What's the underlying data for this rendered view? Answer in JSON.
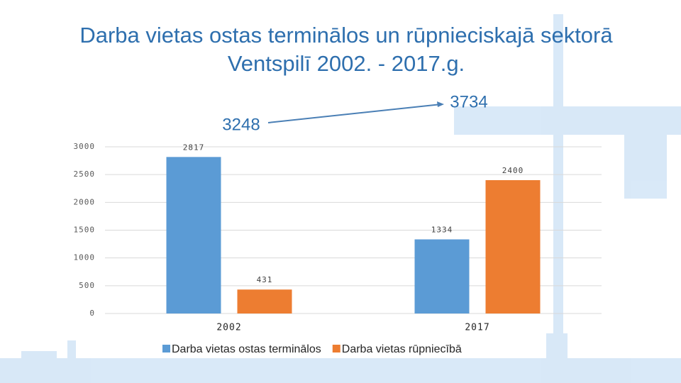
{
  "chart_data": {
    "type": "bar",
    "title": "Darba vietas ostas terminālos un rūpnieciskajā sektorā Ventspilī 2002. - 2017.g.",
    "annotations": [
      "3248",
      "3734"
    ],
    "categories": [
      "2002",
      "2017"
    ],
    "series": [
      {
        "name": "Darba vietas ostas terminālos",
        "color": "#5b9bd5",
        "values": [
          2817,
          1334
        ]
      },
      {
        "name": "Darba vietas rūpniecībā",
        "color": "#ed7d31",
        "values": [
          431,
          2400
        ]
      }
    ],
    "ylim": [
      0,
      3000
    ],
    "yticks": [
      0,
      500,
      1000,
      1500,
      2000,
      2500,
      3000
    ],
    "grid": true
  }
}
